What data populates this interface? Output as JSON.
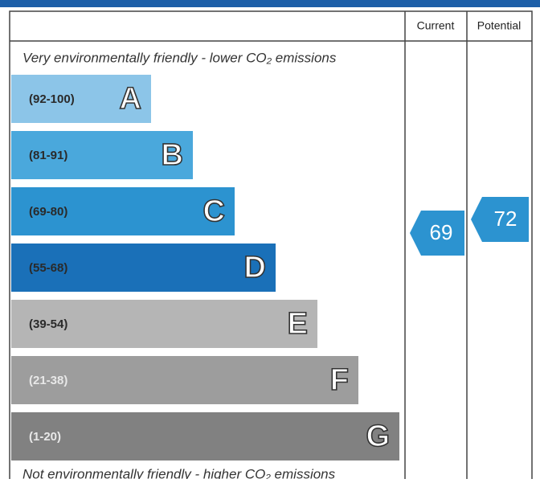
{
  "header": {
    "columns": [
      "Current",
      "Potential"
    ]
  },
  "top_text": "Very environmentally friendly - lower CO₂ emissions",
  "bottom_text": "Not environmentally friendly - higher CO₂ emissions",
  "bands": [
    {
      "range": "(92-100)",
      "letter": "A"
    },
    {
      "range": "(81-91)",
      "letter": "B"
    },
    {
      "range": "(69-80)",
      "letter": "C"
    },
    {
      "range": "(55-68)",
      "letter": "D"
    },
    {
      "range": "(39-54)",
      "letter": "E"
    },
    {
      "range": "(21-38)",
      "letter": "F"
    },
    {
      "range": "(1-20)",
      "letter": "G"
    }
  ],
  "current": "69",
  "potential": "72"
}
